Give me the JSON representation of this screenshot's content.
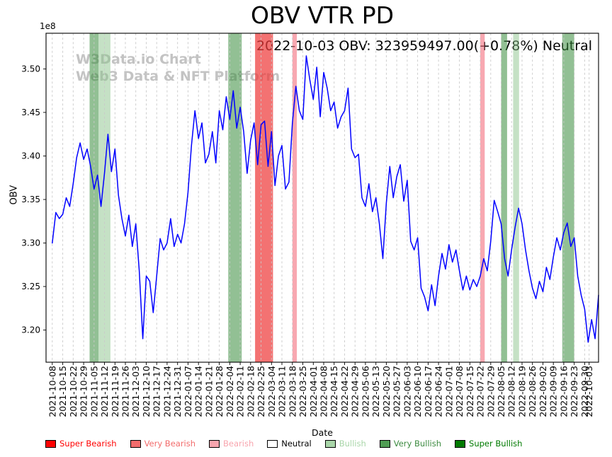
{
  "title": "OBV VTR PD",
  "annotation": "2022-10-03 OBV: 323959497.00(+0.78%) Neutral",
  "watermark": {
    "line1": "W3Data.io Chart",
    "line2": "Web3 Data & NFT Platform"
  },
  "axes": {
    "y_label": "OBV",
    "x_label": "Date",
    "offset_label": "1e8"
  },
  "legend": [
    {
      "label": "Super Bearish",
      "swatch": "#ff0000",
      "text_color": "#ff0000"
    },
    {
      "label": "Very Bearish",
      "swatch": "#f26c6c",
      "text_color": "#f26c6c"
    },
    {
      "label": "Bearish",
      "swatch": "#f8a5ae",
      "text_color": "#f8a5ae"
    },
    {
      "label": "Neutral",
      "swatch": "#ffffff",
      "text_color": "#000000"
    },
    {
      "label": "Bullish",
      "swatch": "#a9d6a9",
      "text_color": "#a9d6a9"
    },
    {
      "label": "Very Bullish",
      "swatch": "#4f9d53",
      "text_color": "#3d8b41"
    },
    {
      "label": "Super Bullish",
      "swatch": "#007a00",
      "text_color": "#007a00"
    }
  ],
  "chart_data": {
    "type": "line",
    "title": "OBV VTR PD",
    "xlabel": "Date",
    "ylabel": "OBV",
    "y_scale_label": "1e8",
    "y_ticks": [
      3.2,
      3.25,
      3.3,
      3.35,
      3.4,
      3.45,
      3.5
    ],
    "ylim": [
      3.163,
      3.541
    ],
    "grid": "vertical-dashed",
    "legend_position": "bottom",
    "x_tick_labels": [
      "2021-10-08",
      "2021-10-15",
      "2021-10-22",
      "2021-10-29",
      "2021-11-05",
      "2021-11-12",
      "2021-11-19",
      "2021-11-26",
      "2021-12-03",
      "2021-12-10",
      "2021-12-17",
      "2021-12-24",
      "2021-12-31",
      "2022-01-07",
      "2022-01-14",
      "2022-01-21",
      "2022-01-28",
      "2022-02-04",
      "2022-02-11",
      "2022-02-18",
      "2022-02-25",
      "2022-03-04",
      "2022-03-11",
      "2022-03-18",
      "2022-03-25",
      "2022-04-01",
      "2022-04-08",
      "2022-04-15",
      "2022-04-22",
      "2022-04-29",
      "2022-05-06",
      "2022-05-13",
      "2022-05-20",
      "2022-05-27",
      "2022-06-03",
      "2022-06-10",
      "2022-06-17",
      "2022-06-24",
      "2022-07-01",
      "2022-07-08",
      "2022-07-15",
      "2022-07-22",
      "2022-07-29",
      "2022-08-05",
      "2022-08-12",
      "2022-08-19",
      "2022-08-26",
      "2022-09-02",
      "2022-09-09",
      "2022-09-16",
      "2022-09-23",
      "2022-09-30",
      "2022-10-03"
    ],
    "last_value": 323959497.0,
    "last_change_pct": 0.78,
    "last_signal": "Neutral",
    "series": [
      {
        "name": "OBV",
        "color": "#0000ff",
        "values": [
          3.3,
          3.335,
          3.328,
          3.333,
          3.352,
          3.342,
          3.368,
          3.398,
          3.415,
          3.396,
          3.408,
          3.388,
          3.362,
          3.378,
          3.342,
          3.38,
          3.425,
          3.382,
          3.408,
          3.355,
          3.328,
          3.308,
          3.332,
          3.296,
          3.322,
          3.268,
          3.19,
          3.262,
          3.256,
          3.22,
          3.262,
          3.305,
          3.292,
          3.3,
          3.328,
          3.296,
          3.31,
          3.3,
          3.322,
          3.358,
          3.412,
          3.452,
          3.42,
          3.438,
          3.392,
          3.402,
          3.428,
          3.392,
          3.452,
          3.43,
          3.468,
          3.442,
          3.475,
          3.432,
          3.456,
          3.428,
          3.38,
          3.418,
          3.438,
          3.39,
          3.436,
          3.44,
          3.388,
          3.428,
          3.366,
          3.4,
          3.412,
          3.362,
          3.37,
          3.438,
          3.48,
          3.452,
          3.442,
          3.515,
          3.488,
          3.465,
          3.502,
          3.445,
          3.496,
          3.478,
          3.452,
          3.462,
          3.432,
          3.445,
          3.452,
          3.478,
          3.408,
          3.398,
          3.402,
          3.352,
          3.342,
          3.368,
          3.336,
          3.352,
          3.322,
          3.282,
          3.346,
          3.388,
          3.352,
          3.376,
          3.39,
          3.348,
          3.372,
          3.302,
          3.292,
          3.306,
          3.248,
          3.238,
          3.222,
          3.252,
          3.228,
          3.262,
          3.288,
          3.27,
          3.298,
          3.278,
          3.292,
          3.268,
          3.246,
          3.262,
          3.246,
          3.258,
          3.25,
          3.262,
          3.282,
          3.268,
          3.302,
          3.349,
          3.336,
          3.322,
          3.282,
          3.262,
          3.292,
          3.318,
          3.34,
          3.322,
          3.292,
          3.268,
          3.248,
          3.236,
          3.256,
          3.244,
          3.272,
          3.258,
          3.284,
          3.306,
          3.292,
          3.312,
          3.323,
          3.296,
          3.306,
          3.262,
          3.24,
          3.224,
          3.186,
          3.212,
          3.19,
          3.24
        ]
      }
    ],
    "bands": [
      {
        "start": "2021-11-02",
        "end": "2021-11-08",
        "type": "very-bullish"
      },
      {
        "start": "2021-11-08",
        "end": "2021-11-16",
        "type": "bullish"
      },
      {
        "start": "2022-02-03",
        "end": "2022-02-12",
        "type": "very-bullish"
      },
      {
        "start": "2022-02-21",
        "end": "2022-03-05",
        "type": "very-bearish"
      },
      {
        "start": "2022-03-18",
        "end": "2022-03-21",
        "type": "bearish"
      },
      {
        "start": "2022-07-22",
        "end": "2022-07-25",
        "type": "bearish"
      },
      {
        "start": "2022-08-05",
        "end": "2022-08-09",
        "type": "very-bullish"
      },
      {
        "start": "2022-08-13",
        "end": "2022-08-17",
        "type": "bullish"
      },
      {
        "start": "2022-09-15",
        "end": "2022-09-23",
        "type": "very-bullish"
      }
    ],
    "band_colors": {
      "very-bullish": "rgba(56,140,60,0.55)",
      "bullish": "rgba(140,195,140,0.5)",
      "very-bearish": "rgba(238,60,60,0.72)",
      "bearish": "rgba(244,110,125,0.6)"
    }
  }
}
